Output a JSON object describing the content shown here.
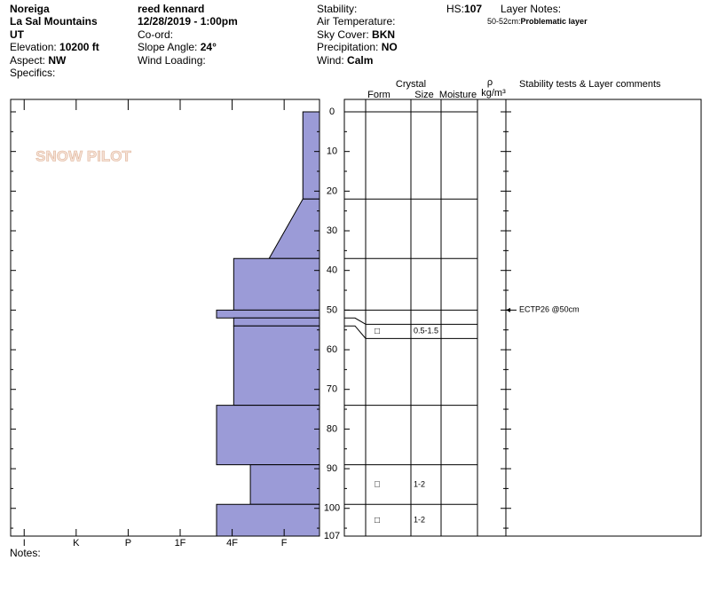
{
  "header": {
    "location": "Noreiga",
    "range": "La Sal Mountains",
    "state": "UT",
    "elevation": {
      "label": "Elevation:",
      "value": "10200 ft"
    },
    "aspect": {
      "label": "Aspect:",
      "value": "NW"
    },
    "specifics": "Specifics:",
    "observer": "reed kennard",
    "date": "12/28/2019 - 1:00pm",
    "coord": "Co-ord:",
    "slope": {
      "label": "Slope Angle:",
      "value": "24°"
    },
    "wind_loading": "Wind Loading:",
    "stability": "Stability:",
    "air_temp": "Air Temperature:",
    "sky": {
      "label": "Sky Cover:",
      "value": "BKN"
    },
    "precip": {
      "label": "Precipitation:",
      "value": "NO"
    },
    "wind": {
      "label": "Wind:",
      "value": "Calm"
    },
    "hs": {
      "label": "HS:",
      "value": "107"
    },
    "layer_notes": "Layer Notes:",
    "layer_note": {
      "depth": "50-52cm:",
      "text": "Problematic layer"
    },
    "logo": "SNOW PILOT"
  },
  "columns": {
    "crystal": "Crystal",
    "form": "Form",
    "size": "Size",
    "moisture": "Moisture",
    "rho": "ρ",
    "density": "kg/m³",
    "comments": "Stability tests & Layer comments"
  },
  "notes": "Notes:",
  "chart_data": {
    "type": "snow-profile",
    "ylim": [
      0,
      107
    ],
    "yticks": [
      0,
      10,
      20,
      30,
      40,
      50,
      60,
      70,
      80,
      90,
      100,
      107
    ],
    "xlim": [
      0.32,
      6.26
    ],
    "xticks": [
      {
        "value": 1,
        "label": "F"
      },
      {
        "value": 2,
        "label": "4F"
      },
      {
        "value": 3,
        "label": "1F"
      },
      {
        "value": 4,
        "label": "P"
      },
      {
        "value": 5,
        "label": "K"
      },
      {
        "value": 6,
        "label": "I"
      }
    ],
    "color": "#9b9bd7",
    "layers": [
      {
        "top": 0,
        "bottom": 22,
        "hardness": 0.64
      },
      {
        "top": 22,
        "bottom": 37,
        "hardness": 0.64,
        "hardness_bottom": 1.29
      },
      {
        "top": 37,
        "bottom": 50,
        "hardness": 1.97
      },
      {
        "top": 50,
        "bottom": 52,
        "hardness": 2.3
      },
      {
        "top": 52,
        "bottom": 54,
        "hardness": 1.97,
        "form": "□",
        "size": "0.5-1.5"
      },
      {
        "top": 54,
        "bottom": 74,
        "hardness": 1.97
      },
      {
        "top": 74,
        "bottom": 89,
        "hardness": 2.3
      },
      {
        "top": 89,
        "bottom": 99,
        "hardness": 1.65,
        "form": "□",
        "size": "1-2"
      },
      {
        "top": 99,
        "bottom": 107,
        "hardness": 2.3,
        "form": "□",
        "size": "1-2"
      }
    ],
    "tests": [
      {
        "depth": 50,
        "label": "ECTP26 @50cm"
      }
    ]
  }
}
